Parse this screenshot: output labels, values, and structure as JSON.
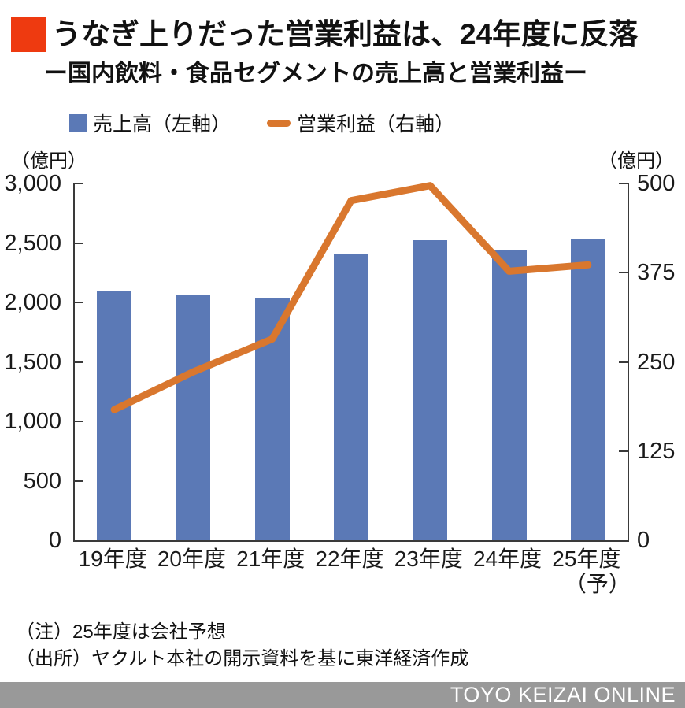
{
  "header": {
    "title": "うなぎ上りだった営業利益は、24年度に反落",
    "subtitle": "ー国内飲料・食品セグメントの売上高と営業利益ー",
    "accent_color": "#ee3a10"
  },
  "legend": {
    "sales_label": "売上高（左軸）",
    "profit_label": "営業利益（右軸）"
  },
  "chart_data": {
    "type": "bar",
    "subtype": "bar+line dual-axis",
    "categories": [
      "19年度",
      "20年度",
      "21年度",
      "22年度",
      "23年度",
      "24年度",
      "25年度"
    ],
    "last_category_suffix": "（予）",
    "series": [
      {
        "name": "売上高（左軸）",
        "render": "bar",
        "axis": "left",
        "color": "#5b79b6",
        "values": [
          2090,
          2068,
          2030,
          2404,
          2524,
          2434,
          2528
        ]
      },
      {
        "name": "営業利益（右軸）",
        "render": "line",
        "axis": "right",
        "color": "#d9772e",
        "values": [
          183,
          236,
          282,
          476,
          497,
          377,
          386
        ]
      }
    ],
    "left_axis": {
      "unit_label": "（億円）",
      "min": 0,
      "max": 3000,
      "tick_values": [
        3000,
        2500,
        2000,
        1500,
        1000,
        500,
        0
      ],
      "tick_labels": [
        "3,000",
        "2,500",
        "2,000",
        "1,500",
        "1,000",
        "500",
        "0"
      ]
    },
    "right_axis": {
      "unit_label": "（億円）",
      "min": 0,
      "max": 500,
      "tick_values": [
        500,
        375,
        250,
        125,
        0
      ],
      "tick_labels": [
        "500",
        "375",
        "250",
        "125",
        "0"
      ]
    },
    "grid": false,
    "legend_position": "top-left",
    "axis_color": "#3a3a3a"
  },
  "notes": {
    "note": "（注）25年度は会社予想",
    "source": "（出所）ヤクルト本社の開示資料を基に東洋経済作成"
  },
  "footer": {
    "brand": "TOYO KEIZAI ONLINE",
    "bg_color": "#999999"
  }
}
